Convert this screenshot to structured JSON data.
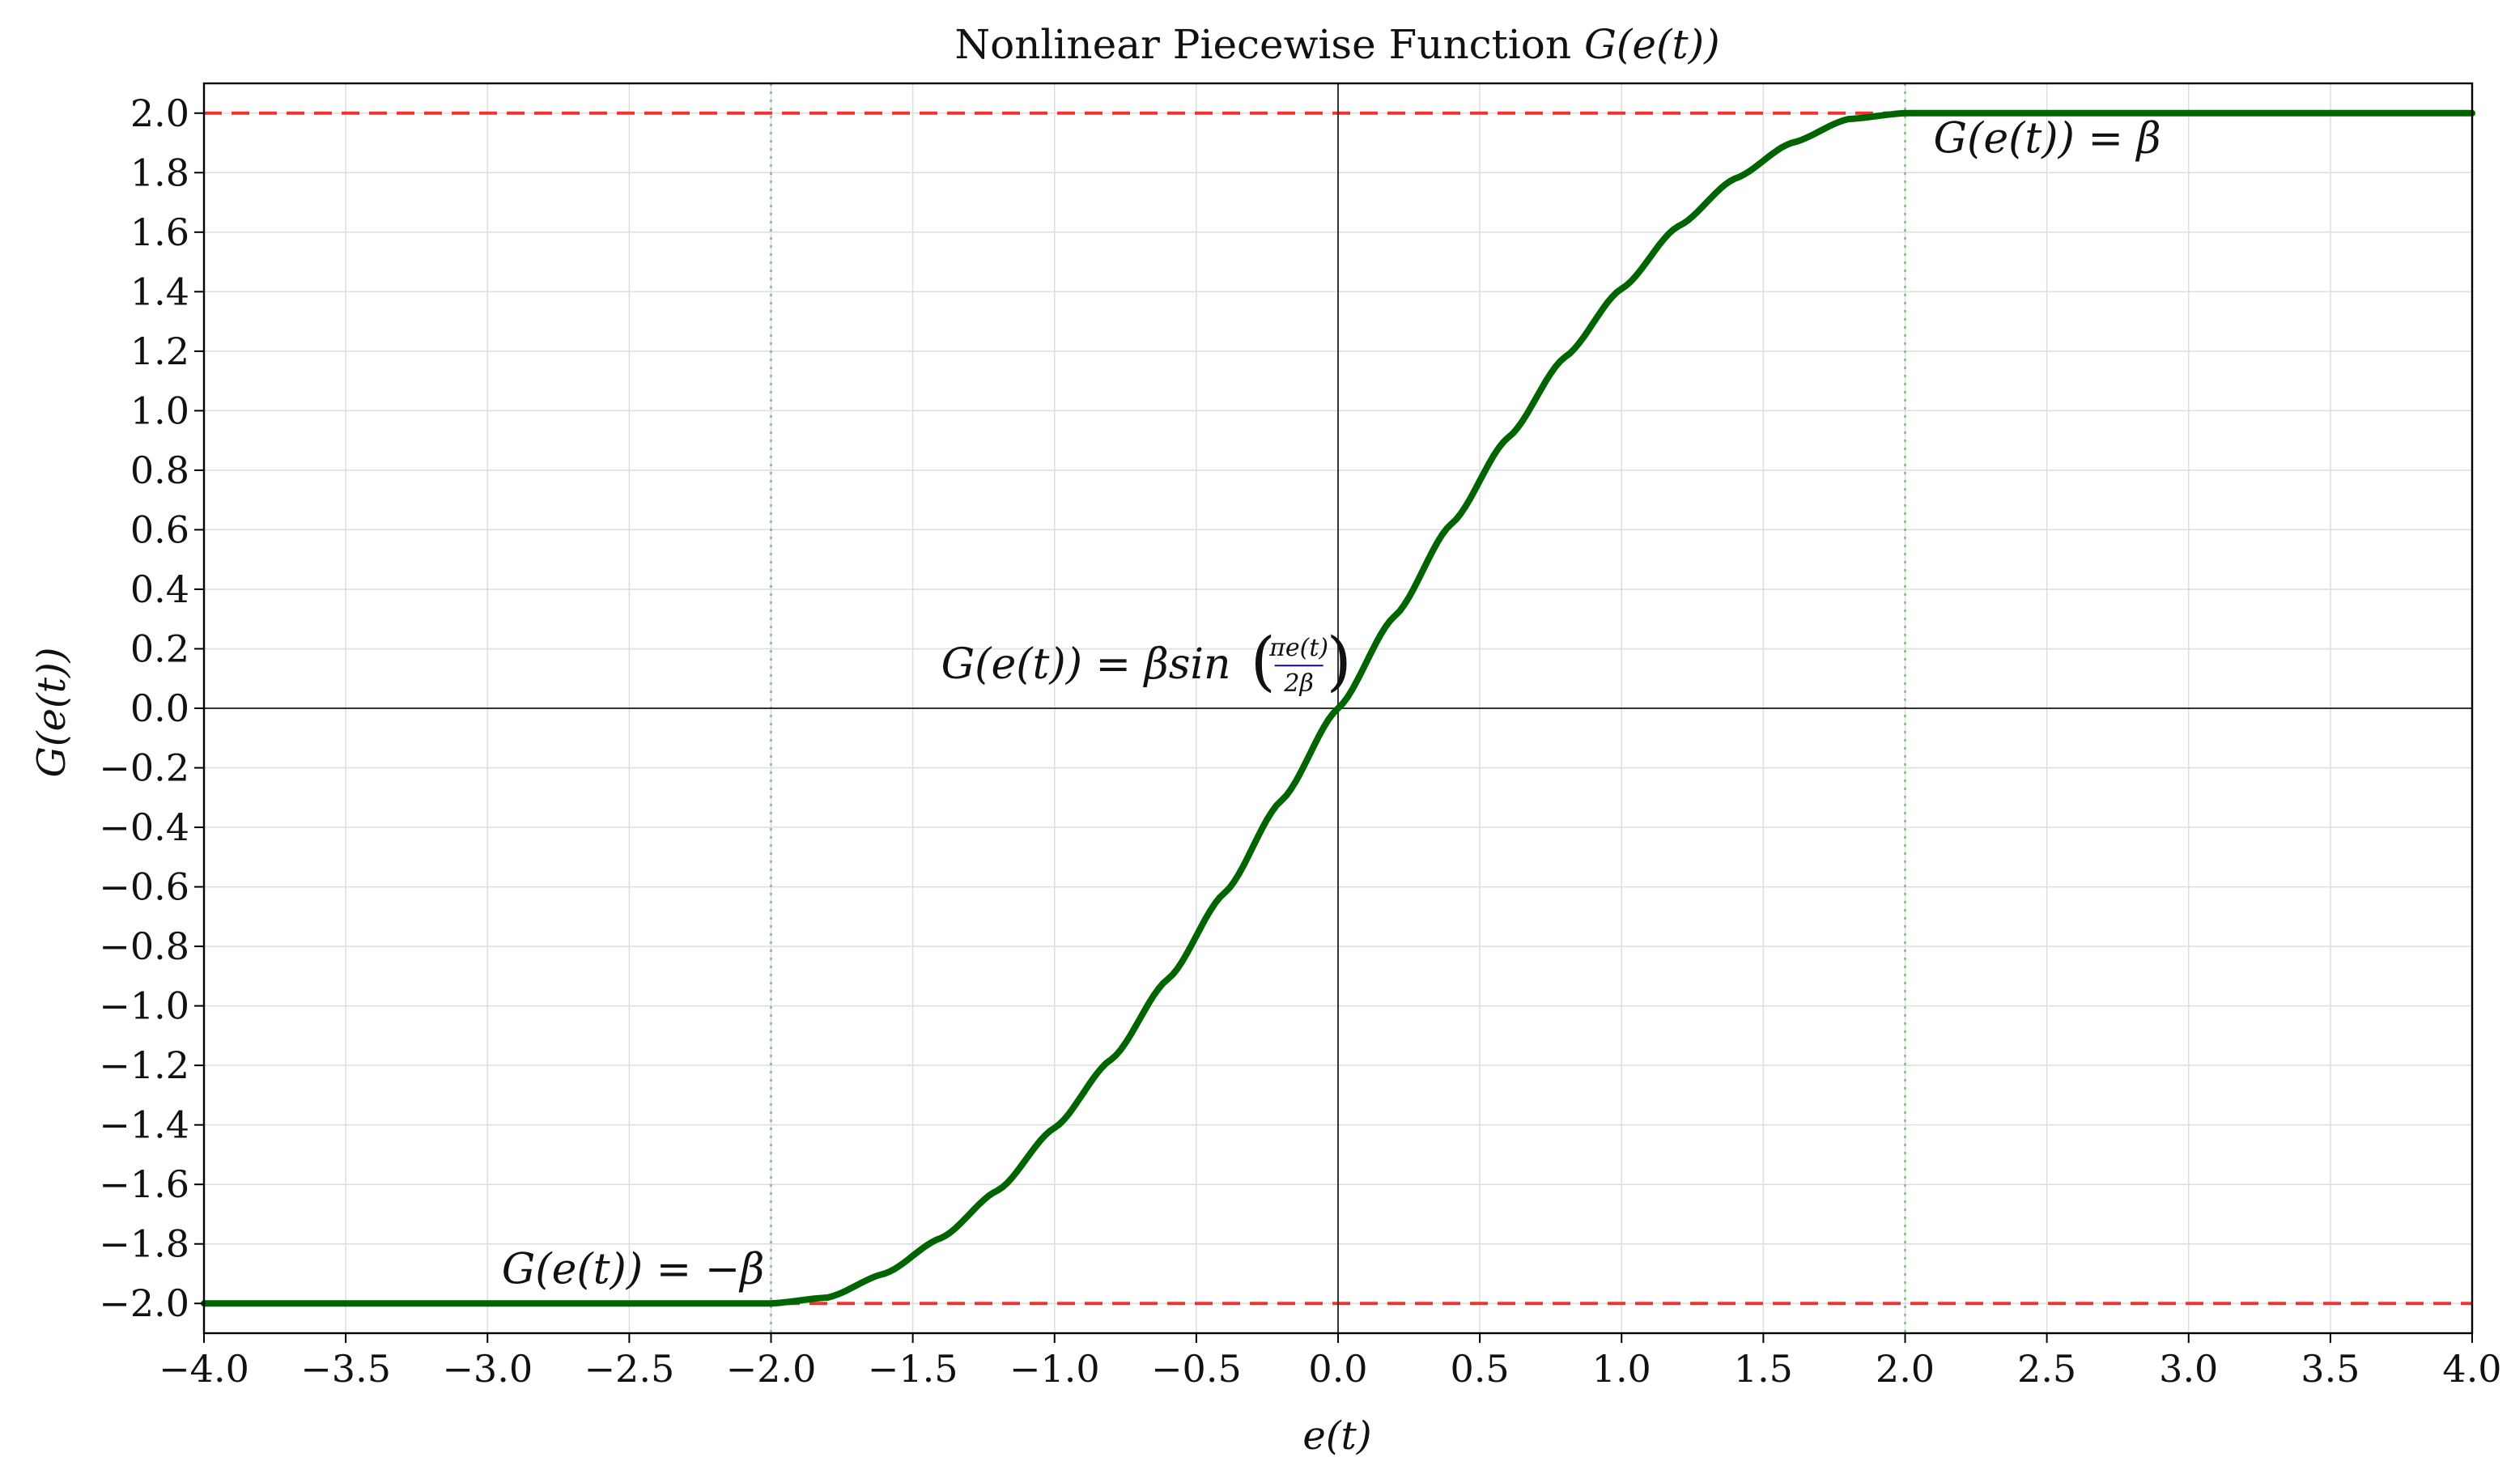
{
  "chart_data": {
    "type": "line",
    "title": "Nonlinear Piecewise Function G(e(t))",
    "title_parts": {
      "prefix": "Nonlinear Piecewise Function ",
      "math": "G(e(t))"
    },
    "xlabel": "e(t)",
    "ylabel": "G(e(t))",
    "xlim": [
      -4.0,
      4.0
    ],
    "ylim": [
      -2.1,
      2.1
    ],
    "x_ticks": [
      -4.0,
      -3.5,
      -3.0,
      -2.5,
      -2.0,
      -1.5,
      -1.0,
      -0.5,
      0.0,
      0.5,
      1.0,
      1.5,
      2.0,
      2.5,
      3.0,
      3.5,
      4.0
    ],
    "x_tick_labels": [
      "−4.0",
      "−3.5",
      "−3.0",
      "−2.5",
      "−2.0",
      "−1.5",
      "−1.0",
      "−0.5",
      "0.0",
      "0.5",
      "1.0",
      "1.5",
      "2.0",
      "2.5",
      "3.0",
      "3.5",
      "4.0"
    ],
    "y_ticks": [
      2.0,
      1.8,
      1.6,
      1.4,
      1.2,
      1.0,
      0.8,
      0.6,
      0.4,
      0.2,
      0.0,
      -0.2,
      -0.4,
      -0.6,
      -0.8,
      -1.0,
      -1.2,
      -1.4,
      -1.6,
      -1.8,
      -2.0
    ],
    "y_tick_labels": [
      "2.0",
      "1.8",
      "1.6",
      "1.4",
      "1.2",
      "1.0",
      "0.8",
      "0.6",
      "0.4",
      "0.2",
      "0.0",
      "−0.2",
      "−0.4",
      "−0.6",
      "−0.8",
      "−1.0",
      "−1.2",
      "−1.4",
      "−1.6",
      "−1.8",
      "−2.0"
    ],
    "grid": true,
    "series": [
      {
        "x": [
          -4.0,
          -2.0,
          -1.8,
          -1.6,
          -1.4,
          -1.2,
          -1.0,
          -0.8,
          -0.6,
          -0.4,
          -0.2,
          0.0,
          0.2,
          0.4,
          0.6,
          0.8,
          1.0,
          1.2,
          1.4,
          1.6,
          1.8,
          2.0,
          4.0
        ],
        "y": [
          -2.0,
          -2.0,
          -1.98,
          -1.9,
          -1.78,
          -1.62,
          -1.41,
          -1.18,
          -0.91,
          -0.62,
          -0.31,
          0.0,
          0.31,
          0.62,
          0.91,
          1.18,
          1.41,
          1.62,
          1.78,
          1.9,
          1.98,
          2.0,
          2.0
        ],
        "color": "#006400"
      }
    ],
    "reference_lines": [
      {
        "orientation": "horizontal",
        "value": 2.0,
        "color": "#ee3333",
        "style": "dashed"
      },
      {
        "orientation": "horizontal",
        "value": -2.0,
        "color": "#ee3333",
        "style": "dashed"
      },
      {
        "orientation": "vertical",
        "value": -2.0,
        "color": "#66cc66",
        "style": "dotted"
      },
      {
        "orientation": "vertical",
        "value": 2.0,
        "color": "#66cc66",
        "style": "dotted"
      },
      {
        "orientation": "horizontal",
        "value": 0.0,
        "color": "#333333",
        "style": "solid"
      },
      {
        "orientation": "vertical",
        "value": 0.0,
        "color": "#333333",
        "style": "solid"
      }
    ],
    "annotations": [
      {
        "id": "upper",
        "x": 2.1,
        "y": 1.9,
        "parts": [
          "G(e(t)) = β"
        ],
        "color": "#8b0000"
      },
      {
        "id": "lower",
        "x": -2.95,
        "y": -1.9,
        "parts": [
          "G(e(t)) = −β"
        ],
        "color": "#8b0000"
      },
      {
        "id": "middle",
        "x": -1.4,
        "y": 0.1,
        "parts": [
          "G(e(t)) = βsin",
          "πe(t)",
          "2β"
        ],
        "color": "#0a0aa0"
      }
    ]
  }
}
